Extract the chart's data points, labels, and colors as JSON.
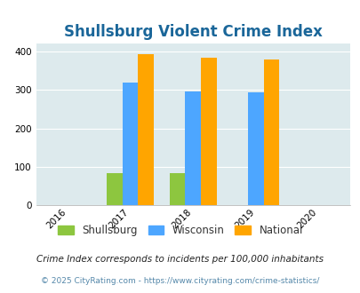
{
  "title": "Shullsburg Violent Crime Index",
  "years": [
    2016,
    2017,
    2018,
    2019,
    2020
  ],
  "bar_data": {
    "2017": {
      "Shullsburg": 83,
      "Wisconsin": 320,
      "National": 393
    },
    "2018": {
      "Shullsburg": 83,
      "Wisconsin": 297,
      "National": 383
    },
    "2019": {
      "Shullsburg": 0,
      "Wisconsin": 295,
      "National": 379
    }
  },
  "colors": {
    "Shullsburg": "#8dc63f",
    "Wisconsin": "#4da6ff",
    "National": "#ffa500"
  },
  "ylim": [
    0,
    420
  ],
  "yticks": [
    0,
    100,
    200,
    300,
    400
  ],
  "background_color": "#ddeaed",
  "figure_background": "#ffffff",
  "title_color": "#1a6699",
  "title_fontsize": 12,
  "footnote1": "Crime Index corresponds to incidents per 100,000 inhabitants",
  "footnote2": "© 2025 CityRating.com - https://www.cityrating.com/crime-statistics/",
  "legend_labels": [
    "Shullsburg",
    "Wisconsin",
    "National"
  ]
}
